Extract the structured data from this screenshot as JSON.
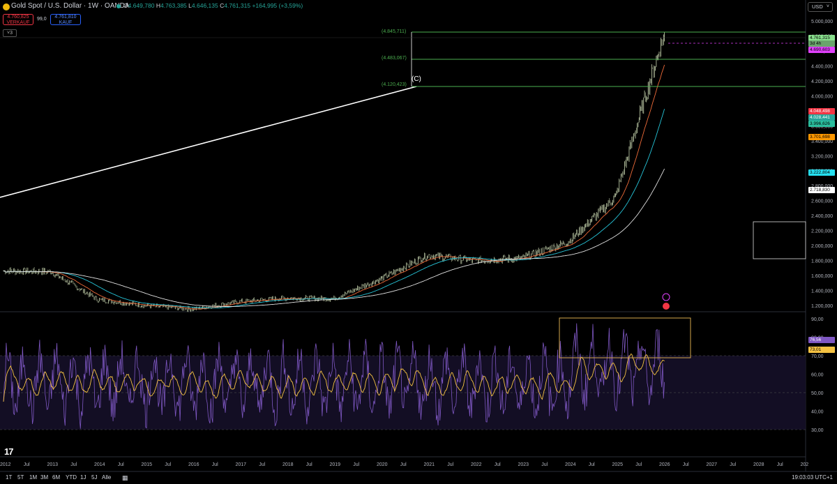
{
  "header": {
    "symbol_title": "Gold Spot / U.S. Dollar · 1W · OANDA",
    "ohlc": {
      "o_label": "O",
      "o": "4.649,780",
      "h_label": "H",
      "h": "4.763,385",
      "l_label": "L",
      "l": "4.646,135",
      "c_label": "C",
      "c": "4.761,315",
      "change": "+164,995 (+3,59%)"
    },
    "sell_price": "4.760,825",
    "sell_label": "VERKAUF",
    "spread": "99,0",
    "buy_price": "4.761,810",
    "buy_label": "KAUF",
    "collapse_count": "3",
    "currency": "USD"
  },
  "colors": {
    "up": "#26a69a",
    "down": "#f23645",
    "fib": "#4caf50",
    "ema_red": "#ef6c3a",
    "ema_teal": "#26c6da",
    "sma_white": "#e0e0e0",
    "rsi": "#7e57c2",
    "rsi_ma": "#f5c242",
    "box": "#d4a84b"
  },
  "price_axis": [
    "5.000,000",
    "4.800,000",
    "4.600,000",
    "4.400,000",
    "4.200,000",
    "4.000,000",
    "3.800,000",
    "3.600,000",
    "3.400,000",
    "3.200,000",
    "3.000,000",
    "2.800,000",
    "2.600,000",
    "2.400,000",
    "2.200,000",
    "2.000,000",
    "1.800,000",
    "1.600,000",
    "1.400,000",
    "1.200,000"
  ],
  "price_tags": [
    {
      "text": "4.761,315",
      "bg": "#89e08d",
      "fg": "#000"
    },
    {
      "text": "3d 4h",
      "bg": "#6aa56c",
      "fg": "#000"
    },
    {
      "text": "4.690,603",
      "bg": "#e040fb",
      "fg": "#000"
    },
    {
      "text": "4.048,498",
      "bg": "#f23645",
      "fg": "#fff"
    },
    {
      "text": "4.028,441",
      "bg": "#26a69a",
      "fg": "#fff"
    },
    {
      "text": "3.996,626",
      "bg": "#2bbf9e",
      "fg": "#000"
    },
    {
      "text": "3.701,698",
      "bg": "#ff9800",
      "fg": "#000"
    },
    {
      "text": "3.222,804",
      "bg": "#26e0f0",
      "fg": "#000"
    },
    {
      "text": "2.718,830",
      "bg": "#ffffff",
      "fg": "#000"
    }
  ],
  "fib_levels": [
    {
      "label": "(4.845,711)",
      "value": 4845.711
    },
    {
      "label": "(4.483,067)",
      "value": 4483.067
    },
    {
      "label": "(4.120,423)",
      "value": 4120.423
    }
  ],
  "wave_label": "(C)",
  "rsi_axis": [
    "90,00",
    "80,00",
    "70,00",
    "60,00",
    "50,00",
    "40,00",
    "30,00"
  ],
  "rsi_tags": [
    {
      "text": "76,56",
      "bg": "#7e57c2",
      "fg": "#fff"
    },
    {
      "text": "73,01",
      "bg": "#f5c242",
      "fg": "#000"
    }
  ],
  "time_axis": [
    "2012",
    "Jul",
    "2013",
    "Jul",
    "2014",
    "Jul",
    "2015",
    "Jul",
    "2016",
    "Jul",
    "2017",
    "Jul",
    "2018",
    "Jul",
    "2019",
    "Jul",
    "2020",
    "Jul",
    "2021",
    "Jul",
    "2022",
    "Jul",
    "2023",
    "Jul",
    "2024",
    "Jul",
    "2025",
    "Jul",
    "2026",
    "Jul",
    "2027",
    "Jul",
    "2028",
    "Jul",
    "202"
  ],
  "ranges": [
    "1T",
    "5T",
    "1M",
    "3M",
    "6M",
    "YTD",
    "1J",
    "5J",
    "Alle"
  ],
  "clock": "19:03:03 UTC+1",
  "logo": "17",
  "chart_data": {
    "type": "line",
    "x": [
      "2012",
      "2013",
      "2014",
      "2015",
      "2016",
      "2017",
      "2018",
      "2019",
      "2020",
      "2021",
      "2022",
      "2023",
      "2024",
      "2025",
      "2026"
    ],
    "series": [
      {
        "values": [
          1660,
          1650,
          1280,
          1200,
          1150,
          1250,
          1300,
          1290,
          1550,
          1870,
          1800,
          1830,
          2050,
          2650,
          4761
        ]
      }
    ],
    "ylim": [
      1100,
      5050
    ]
  }
}
